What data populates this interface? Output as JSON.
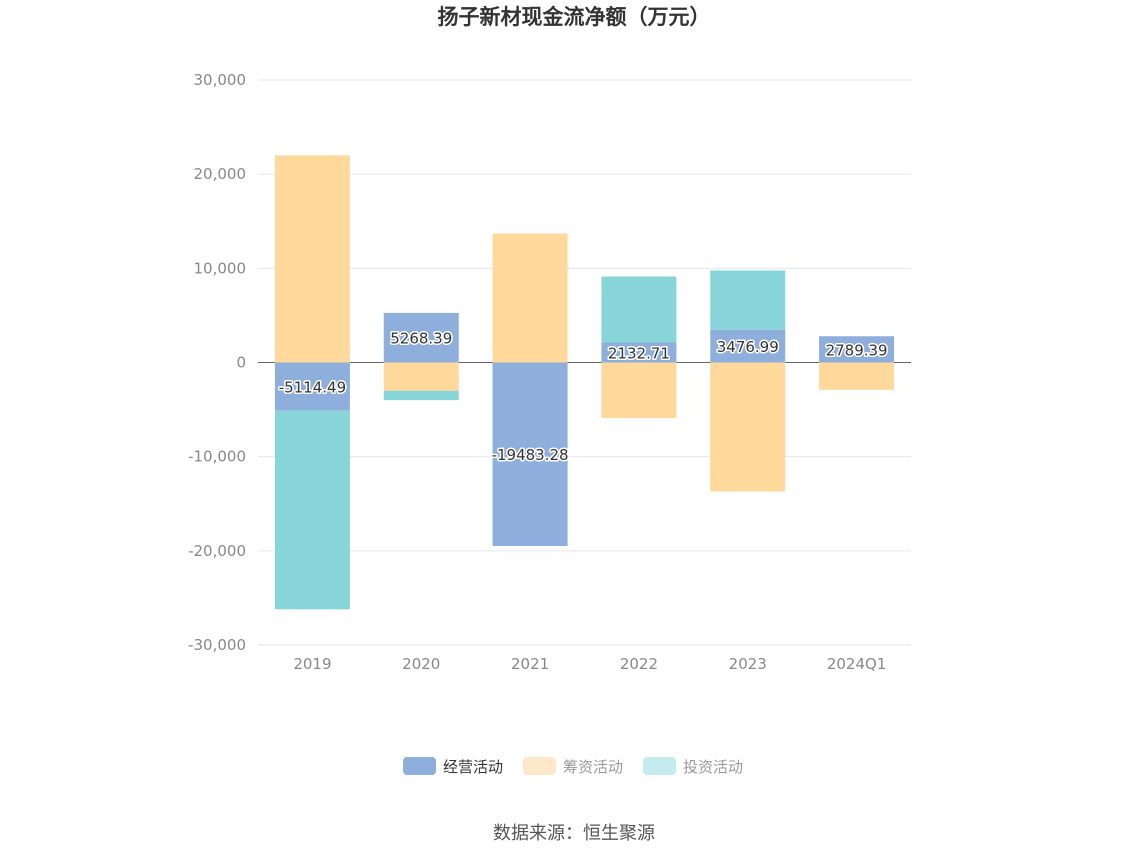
{
  "chart_data": {
    "type": "bar",
    "stacked": true,
    "title": "扬子新材现金流净额（万元）",
    "categories": [
      "2019",
      "2020",
      "2021",
      "2022",
      "2023",
      "2024Q1"
    ],
    "ylim": [
      -30000,
      30000
    ],
    "yticks": [
      30000,
      20000,
      10000,
      0,
      -10000,
      -20000,
      -30000
    ],
    "ytick_labels": [
      "30,000",
      "20,000",
      "10,000",
      "0",
      "-10,000",
      "-20,000",
      "-30,000"
    ],
    "grid": true,
    "legend_position": "bottom",
    "series": [
      {
        "name": "经营活动",
        "color": "#8eaedb",
        "values": [
          -5114.49,
          5268.39,
          -19483.28,
          2132.71,
          3476.99,
          2789.39
        ],
        "labels": [
          "-5114.49",
          "5268.39",
          "-19483.28",
          "2132.71",
          "3476.99",
          "2789.39"
        ]
      },
      {
        "name": "筹资活动",
        "color": "#fed99b",
        "values": [
          22000,
          -3000,
          13700,
          -5900,
          -13700,
          -2900
        ]
      },
      {
        "name": "投资活动",
        "color": "#88d5d9",
        "values": [
          -21100,
          -1000,
          0,
          7000,
          6300,
          0
        ]
      }
    ],
    "legend_inactive_colors": [
      "#fde9c9",
      "#c4ebed"
    ],
    "source": "数据来源：恒生聚源"
  }
}
